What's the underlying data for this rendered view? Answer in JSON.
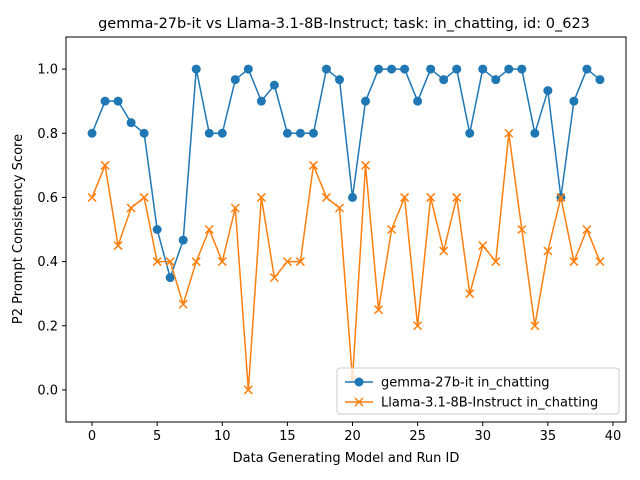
{
  "chart_data": {
    "type": "line",
    "title": "gemma-27b-it vs Llama-3.1-8B-Instruct; task: in_chatting, id: 0_623",
    "xlabel": "Data Generating Model and Run ID",
    "ylabel": "P2 Prompt Consistency Score",
    "xlim": [
      -2,
      41
    ],
    "ylim": [
      -0.1,
      1.1
    ],
    "xticks": [
      0,
      5,
      10,
      15,
      20,
      25,
      30,
      35,
      40
    ],
    "yticks": [
      0.0,
      0.2,
      0.4,
      0.6,
      0.8,
      1.0
    ],
    "xtick_labels": [
      "0",
      "5",
      "10",
      "15",
      "20",
      "25",
      "30",
      "35",
      "40"
    ],
    "ytick_labels": [
      "0.0",
      "0.2",
      "0.4",
      "0.6",
      "0.8",
      "1.0"
    ],
    "grid": false,
    "legend_position": "lower-right",
    "x": [
      0,
      1,
      2,
      3,
      4,
      5,
      6,
      7,
      8,
      9,
      10,
      11,
      12,
      13,
      14,
      15,
      16,
      17,
      18,
      19,
      20,
      21,
      22,
      23,
      24,
      25,
      26,
      27,
      28,
      29,
      30,
      31,
      32,
      33,
      34,
      35,
      36,
      37,
      38,
      39
    ],
    "series": [
      {
        "name": "gemma-27b-it in_chatting",
        "color": "#1f77b4",
        "marker": "circle",
        "values": [
          0.8,
          0.9,
          0.9,
          0.833,
          0.8,
          0.5,
          0.35,
          0.467,
          1.0,
          0.8,
          0.8,
          0.967,
          1.0,
          0.9,
          0.95,
          0.8,
          0.8,
          0.8,
          1.0,
          0.967,
          0.6,
          0.9,
          1.0,
          1.0,
          1.0,
          0.9,
          1.0,
          0.967,
          1.0,
          0.8,
          1.0,
          0.967,
          1.0,
          1.0,
          0.8,
          0.933,
          0.6,
          0.9,
          1.0,
          0.967
        ]
      },
      {
        "name": "Llama-3.1-8B-Instruct in_chatting",
        "color": "#ff7f0e",
        "marker": "x",
        "values": [
          0.6,
          0.7,
          0.45,
          0.567,
          0.6,
          0.4,
          0.4,
          0.267,
          0.4,
          0.5,
          0.4,
          0.567,
          0.0,
          0.6,
          0.35,
          0.4,
          0.4,
          0.7,
          0.6,
          0.567,
          0.033,
          0.7,
          0.25,
          0.5,
          0.6,
          0.2,
          0.6,
          0.433,
          0.6,
          0.3,
          0.45,
          0.4,
          0.8,
          0.5,
          0.2,
          0.433,
          0.6,
          0.4,
          0.5,
          0.4
        ]
      }
    ]
  }
}
